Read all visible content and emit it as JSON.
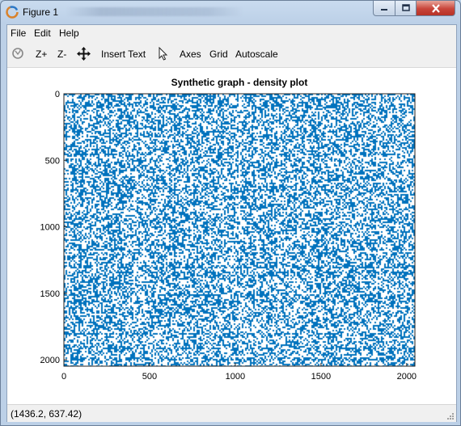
{
  "window": {
    "title": "Figure 1"
  },
  "menu": {
    "items": [
      "File",
      "Edit",
      "Help"
    ]
  },
  "toolbar": {
    "zoom_in": "Z+",
    "zoom_out": "Z-",
    "insert_text": "Insert Text",
    "axes": "Axes",
    "grid": "Grid",
    "autoscale": "Autoscale",
    "icons": [
      "rotate-icon",
      "pan-icon",
      "select-arrow-icon"
    ]
  },
  "status": {
    "text": "(1436.2, 637.42)"
  },
  "colors": {
    "marker": "#1f77b4",
    "accent": "#0072bd"
  },
  "chart_data": {
    "type": "heatmap",
    "title": "Synthetic graph - density plot",
    "xlabel": "",
    "ylabel": "",
    "xlim": [
      0,
      2048
    ],
    "ylim": [
      2048,
      0
    ],
    "xticks": [
      0,
      500,
      1000,
      1500,
      2000
    ],
    "yticks": [
      0,
      500,
      1000,
      1500,
      2000
    ],
    "xtick_labels": [
      "0",
      "500",
      "1000",
      "1500",
      "2000"
    ],
    "ytick_labels": [
      "0",
      "500",
      "1000",
      "1500",
      "2000"
    ],
    "marker_color": "#0072bd",
    "approx_density": 0.45,
    "grid": false
  }
}
